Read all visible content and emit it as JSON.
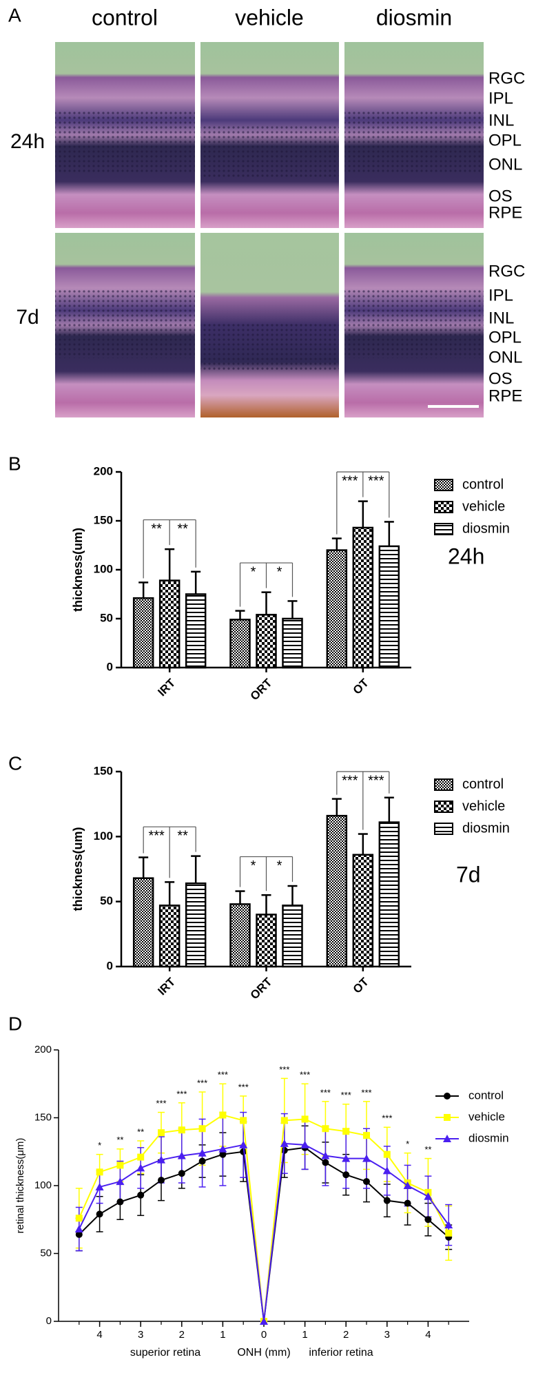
{
  "panel_a": {
    "panel_label": "A",
    "columns": [
      "control",
      "vehicle",
      "diosmin"
    ],
    "rows": [
      {
        "label": "24h",
        "layers": [
          "RGC",
          "IPL",
          "INL",
          "OPL",
          "ONL",
          "OS",
          "RPE"
        ]
      },
      {
        "label": "7d",
        "layers": [
          "RGC",
          "IPL",
          "INL",
          "OPL",
          "ONL",
          "OS",
          "RPE"
        ]
      }
    ]
  },
  "chart_data": [
    {
      "type": "bar",
      "panel_label": "B",
      "annotation": "24h",
      "ylabel": "thickness(um)",
      "categories": [
        "IRT",
        "ORT",
        "OT"
      ],
      "series": [
        {
          "name": "control",
          "pattern": "fine-check",
          "values": [
            71,
            49,
            120
          ],
          "errors": [
            16,
            9,
            12
          ]
        },
        {
          "name": "vehicle",
          "pattern": "checker",
          "values": [
            89,
            54,
            143
          ],
          "errors": [
            32,
            23,
            27
          ]
        },
        {
          "name": "diosmin",
          "pattern": "stripes",
          "values": [
            75,
            50,
            124
          ],
          "errors": [
            23,
            18,
            25
          ]
        }
      ],
      "significance": [
        [
          "**",
          "**"
        ],
        [
          "*",
          "*"
        ],
        [
          "***",
          "***"
        ]
      ],
      "ylim": [
        0,
        200
      ],
      "yticks": [
        0,
        50,
        100,
        150,
        200
      ]
    },
    {
      "type": "bar",
      "panel_label": "C",
      "annotation": "7d",
      "ylabel": "thickness(um)",
      "categories": [
        "IRT",
        "ORT",
        "OT"
      ],
      "series": [
        {
          "name": "control",
          "pattern": "fine-check",
          "values": [
            68,
            48,
            116
          ],
          "errors": [
            16,
            10,
            13
          ]
        },
        {
          "name": "vehicle",
          "pattern": "checker",
          "values": [
            47,
            40,
            86
          ],
          "errors": [
            18,
            15,
            16
          ]
        },
        {
          "name": "diosmin",
          "pattern": "stripes",
          "values": [
            64,
            47,
            111
          ],
          "errors": [
            21,
            15,
            19
          ]
        }
      ],
      "significance": [
        [
          "***",
          "**"
        ],
        [
          "*",
          "*"
        ],
        [
          "***",
          "***"
        ]
      ],
      "ylim": [
        0,
        150
      ],
      "yticks": [
        0,
        50,
        100,
        150
      ]
    },
    {
      "type": "line",
      "panel_label": "D",
      "ylabel": "retinal thickness(μm)",
      "xlabels": [
        "superior retina",
        "ONH (mm)",
        "inferior retina"
      ],
      "x": [
        -4.5,
        -4,
        -3.5,
        -3,
        -2.5,
        -2,
        -1.5,
        -1,
        -0.5,
        0,
        0.5,
        1,
        1.5,
        2,
        2.5,
        3,
        3.5,
        4,
        4.5
      ],
      "series": [
        {
          "name": "control",
          "color": "#000000",
          "marker": "circle",
          "values": [
            64,
            79,
            88,
            93,
            104,
            109,
            118,
            123,
            125,
            0,
            126,
            128,
            117,
            108,
            103,
            89,
            87,
            75,
            62
          ],
          "errors": [
            12,
            13,
            13,
            15,
            15,
            11,
            12,
            16,
            22,
            0,
            20,
            16,
            15,
            15,
            15,
            12,
            16,
            12,
            9
          ]
        },
        {
          "name": "vehicle",
          "color": "#ffff00",
          "marker": "square",
          "values": [
            76,
            110,
            115,
            121,
            139,
            141,
            142,
            152,
            148,
            0,
            148,
            149,
            142,
            140,
            137,
            123,
            102,
            95,
            65
          ],
          "errors": [
            22,
            13,
            12,
            12,
            15,
            20,
            27,
            23,
            18,
            0,
            31,
            26,
            20,
            20,
            25,
            20,
            22,
            25,
            20
          ]
        },
        {
          "name": "diosmin",
          "color": "#4a1ff0",
          "marker": "triangle",
          "values": [
            68,
            99,
            103,
            113,
            119,
            122,
            124,
            127,
            130,
            0,
            131,
            130,
            122,
            120,
            120,
            111,
            100,
            92,
            71
          ],
          "errors": [
            16,
            12,
            15,
            15,
            17,
            20,
            25,
            27,
            24,
            0,
            22,
            18,
            22,
            22,
            22,
            18,
            15,
            15,
            15
          ]
        }
      ],
      "significance": {
        "x": [
          -4,
          -3.5,
          -3,
          -2.5,
          -2,
          -1.5,
          -1,
          -0.5,
          0.5,
          1,
          1.5,
          2,
          2.5,
          3,
          3.5,
          4
        ],
        "labels": [
          "*",
          "**",
          "**",
          "***",
          "***",
          "***",
          "***",
          "***",
          "***",
          "***",
          "***",
          "***",
          "***",
          "***",
          "*",
          "**"
        ]
      },
      "xlim": [
        -5,
        5
      ],
      "xticks": [
        {
          "value": -4,
          "label": "4"
        },
        {
          "value": -3,
          "label": "3"
        },
        {
          "value": -2,
          "label": "2"
        },
        {
          "value": -1,
          "label": "1"
        },
        0,
        {
          "value": 1,
          "label": "1"
        },
        {
          "value": 2,
          "label": "2"
        },
        {
          "value": 3,
          "label": "3"
        },
        {
          "value": 4,
          "label": "4"
        }
      ],
      "ylim": [
        0,
        200
      ],
      "yticks": [
        0,
        50,
        100,
        150,
        200
      ]
    }
  ]
}
